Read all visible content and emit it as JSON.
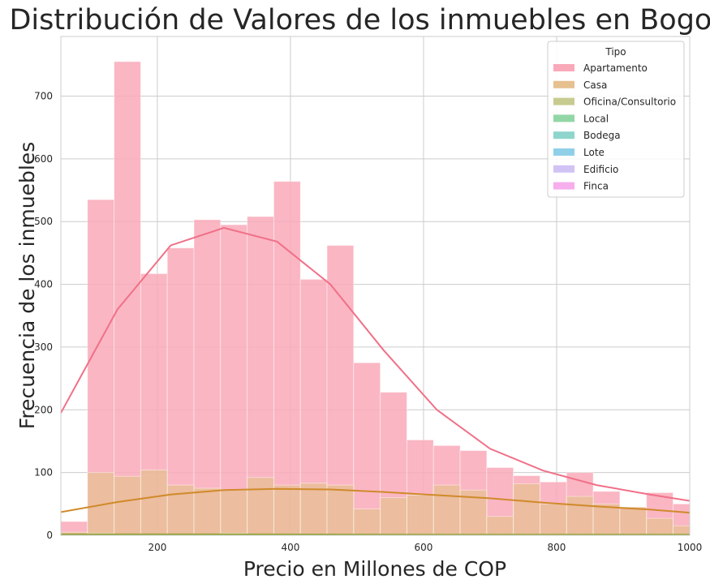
{
  "chart_data": {
    "type": "bar",
    "title": "Distribución de Valores de los inmuebles en Bogotá",
    "xlabel": "Precio en Millones de COP",
    "ylabel": "Frecuencia de los inmuebles",
    "xlim": [
      55,
      1000
    ],
    "ylim": [
      0,
      795
    ],
    "xticks": [
      200,
      400,
      600,
      800,
      1000
    ],
    "yticks": [
      0,
      100,
      200,
      300,
      400,
      500,
      600,
      700
    ],
    "grid": true,
    "legend": {
      "title": "Tipo",
      "placement": "top-right",
      "entries": [
        {
          "name": "Apartamento",
          "color": "#f9a9b9"
        },
        {
          "name": "Casa",
          "color": "#e6c08f"
        },
        {
          "name": "Oficina/Consultorio",
          "color": "#c8cb8f"
        },
        {
          "name": "Local",
          "color": "#93d6a6"
        },
        {
          "name": "Bodega",
          "color": "#8ed5cc"
        },
        {
          "name": "Lote",
          "color": "#8fd0e8"
        },
        {
          "name": "Edificio",
          "color": "#d2c3f5"
        },
        {
          "name": "Finca",
          "color": "#f6aeec"
        }
      ]
    },
    "bin_edges": [
      55,
      95,
      135,
      175,
      215,
      255,
      295,
      335,
      375,
      415,
      455,
      495,
      535,
      575,
      615,
      655,
      695,
      735,
      775,
      815,
      855,
      895,
      935,
      975,
      1015
    ],
    "series": [
      {
        "name": "Apartamento",
        "color": "#f9a9b9",
        "kde_color": "#f07088",
        "values": [
          22,
          535,
          755,
          417,
          458,
          503,
          495,
          508,
          564,
          408,
          462,
          275,
          228,
          152,
          143,
          135,
          108,
          95,
          85,
          100,
          70,
          45,
          68,
          50
        ],
        "kde_x": [
          55,
          140,
          220,
          300,
          380,
          460,
          540,
          620,
          700,
          780,
          860,
          940,
          1000
        ],
        "kde_y": [
          195,
          360,
          462,
          490,
          468,
          400,
          295,
          200,
          138,
          103,
          80,
          65,
          55
        ]
      },
      {
        "name": "Casa",
        "color": "#e6c08f",
        "kde_color": "#d08a2a",
        "values": [
          5,
          100,
          94,
          104,
          80,
          75,
          72,
          92,
          80,
          83,
          80,
          42,
          60,
          64,
          80,
          72,
          30,
          82,
          50,
          62,
          50,
          45,
          27,
          15
        ],
        "kde_x": [
          55,
          140,
          220,
          300,
          380,
          460,
          540,
          620,
          700,
          780,
          860,
          940,
          1000
        ],
        "kde_y": [
          37,
          53,
          65,
          72,
          74,
          73,
          69,
          64,
          59,
          52,
          46,
          41,
          36
        ]
      },
      {
        "name": "Oficina/Consultorio",
        "color": "#c8cb8f",
        "kde_color": "#8fa02e",
        "values": [
          2,
          3,
          2,
          2,
          2,
          2,
          3,
          2,
          2,
          2,
          1,
          1,
          1,
          1,
          1,
          1,
          1,
          1,
          1,
          1,
          1,
          1,
          1,
          1
        ],
        "kde_x": [
          55,
          300,
          600,
          1000
        ],
        "kde_y": [
          1.5,
          1.5,
          1,
          1
        ]
      }
    ]
  }
}
